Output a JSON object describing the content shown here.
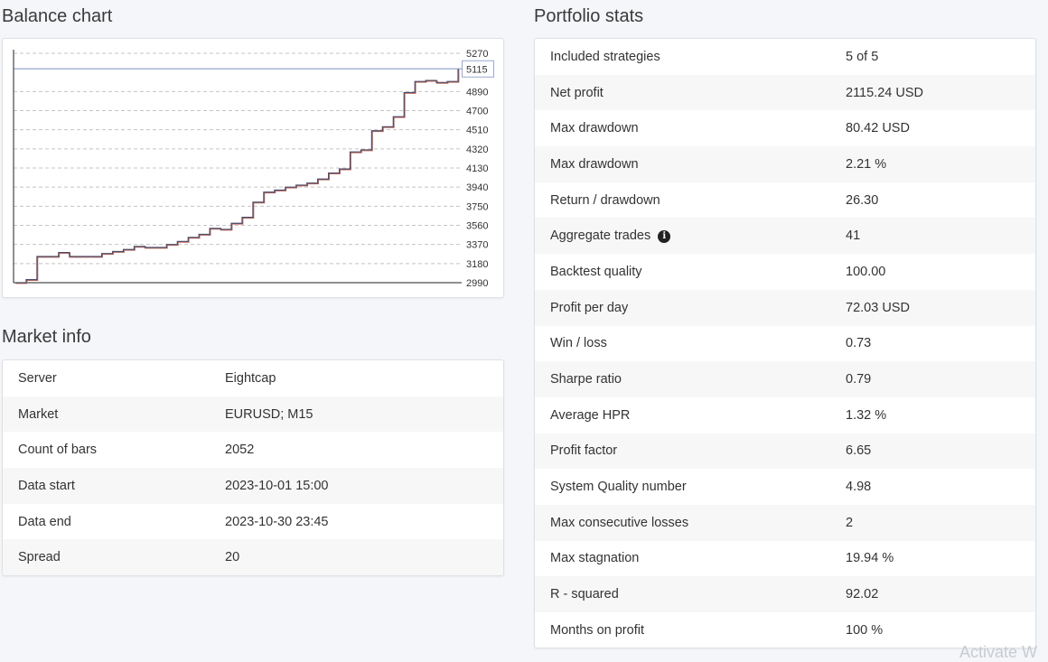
{
  "balance_chart": {
    "title": "Balance chart",
    "current_value_label": "5115"
  },
  "chart_data": {
    "type": "line",
    "title": "Balance chart",
    "xlabel": "",
    "ylabel": "",
    "ylim": [
      2990,
      5270
    ],
    "y_ticks": [
      2990,
      3180,
      3370,
      3560,
      3750,
      3940,
      4130,
      4320,
      4510,
      4700,
      4890,
      5115,
      5270
    ],
    "grid": true,
    "x": [
      0,
      1,
      2,
      3,
      4,
      5,
      6,
      7,
      8,
      9,
      10,
      11,
      12,
      13,
      14,
      15,
      16,
      17,
      18,
      19,
      20,
      21,
      22,
      23,
      24,
      25,
      26,
      27,
      28,
      29,
      30,
      31,
      32,
      33,
      34,
      35,
      36,
      37,
      38,
      39,
      40,
      41
    ],
    "series": [
      {
        "values": [
          2990,
          3020,
          3250,
          3250,
          3290,
          3250,
          3250,
          3250,
          3280,
          3300,
          3320,
          3350,
          3340,
          3340,
          3370,
          3400,
          3440,
          3470,
          3530,
          3520,
          3580,
          3640,
          3790,
          3890,
          3910,
          3940,
          3960,
          3980,
          4020,
          4080,
          4120,
          4290,
          4310,
          4500,
          4540,
          4640,
          4880,
          4990,
          5000,
          4980,
          4990,
          5115
        ]
      }
    ]
  },
  "market_info": {
    "title": "Market info",
    "rows": [
      {
        "label": "Server",
        "value": "Eightcap"
      },
      {
        "label": "Market",
        "value": "EURUSD; M15"
      },
      {
        "label": "Count of bars",
        "value": "2052"
      },
      {
        "label": "Data start",
        "value": "2023-10-01 15:00"
      },
      {
        "label": "Data end",
        "value": "2023-10-30 23:45"
      },
      {
        "label": "Spread",
        "value": "20"
      }
    ]
  },
  "portfolio_stats": {
    "title": "Portfolio stats",
    "info_icon": "info-icon",
    "rows": [
      {
        "label": "Included strategies",
        "value": "5 of 5"
      },
      {
        "label": "Net profit",
        "value": "2115.24 USD"
      },
      {
        "label": "Max drawdown",
        "value": "80.42 USD"
      },
      {
        "label": "Max drawdown",
        "value": "2.21 %"
      },
      {
        "label": "Return / drawdown",
        "value": "26.30"
      },
      {
        "label": "Aggregate trades",
        "value": "41"
      },
      {
        "label": "Backtest quality",
        "value": "100.00"
      },
      {
        "label": "Profit per day",
        "value": "72.03 USD"
      },
      {
        "label": "Win / loss",
        "value": "0.73"
      },
      {
        "label": "Sharpe ratio",
        "value": "0.79"
      },
      {
        "label": "Average HPR",
        "value": "1.32 %"
      },
      {
        "label": "Profit factor",
        "value": "6.65"
      },
      {
        "label": "System Quality number",
        "value": "4.98"
      },
      {
        "label": "Max consecutive losses",
        "value": "2"
      },
      {
        "label": "Max stagnation",
        "value": "19.94 %"
      },
      {
        "label": "R - squared",
        "value": "92.02"
      },
      {
        "label": "Months on profit",
        "value": "100 %"
      }
    ]
  },
  "watermark": "Activate W"
}
